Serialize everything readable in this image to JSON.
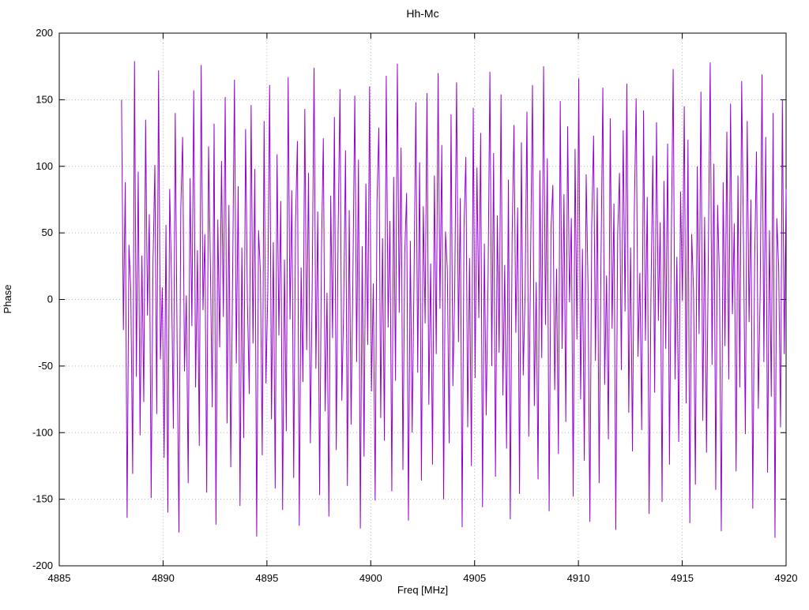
{
  "chart_data": {
    "type": "line",
    "title": "Hh-Mc",
    "xlabel": "Freq [MHz]",
    "ylabel": "Phase",
    "xlim": [
      4885,
      4920
    ],
    "ylim": [
      -200,
      200
    ],
    "x_ticks": [
      4885,
      4890,
      4895,
      4900,
      4905,
      4910,
      4915,
      4920
    ],
    "y_ticks": [
      -200,
      -150,
      -100,
      -50,
      0,
      50,
      100,
      150,
      200
    ],
    "grid": true,
    "legend": "none",
    "series_name": "Hh-Mc",
    "series_color": "#9400d3",
    "grid_color": "#b5b5b5",
    "x_start": 4888.0,
    "x_end": 4920.0,
    "values": [
      150,
      -23,
      88,
      -164,
      41,
      7,
      -131,
      179,
      -58,
      96,
      -102,
      33,
      -77,
      135,
      -12,
      64,
      -149,
      28,
      101,
      -86,
      172,
      -45,
      9,
      -119,
      56,
      -160,
      83,
      14,
      -97,
      140,
      -31,
      -175,
      68,
      122,
      -54,
      3,
      -138,
      91,
      -20,
      157,
      -66,
      37,
      -110,
      176,
      -8,
      49,
      -145,
      115,
      25,
      -81,
      132,
      -169,
      60,
      -36,
      104,
      -13,
      152,
      -93,
      71,
      -126,
      17,
      165,
      -48,
      85,
      -155,
      39,
      -104,
      128,
      -2,
      -71,
      146,
      -33,
      98,
      -178,
      52,
      21,
      -117,
      134,
      -63,
      6,
      161,
      -90,
      43,
      -142,
      109,
      -27,
      74,
      -158,
      30,
      -99,
      167,
      -15,
      82,
      -134,
      58,
      119,
      -170,
      24,
      -62,
      143,
      -38,
      95,
      -108,
      11,
      174,
      -52,
      66,
      -147,
      36,
      121,
      -84,
      5,
      -163,
      78,
      -29,
      137,
      -113,
      50,
      158,
      -76,
      -5,
      112,
      -140,
      67,
      -94,
      19,
      153,
      -47,
      105,
      -172,
      40,
      -118,
      87,
      -34,
      160,
      -69,
      12,
      -151,
      73,
      129,
      -89,
      46,
      -106,
      168,
      -21,
      59,
      -144,
      92,
      -61,
      177,
      -10,
      114,
      -128,
      35,
      80,
      -166,
      44,
      -100,
      16,
      148,
      -55,
      103,
      -136,
      70,
      -18,
      155,
      -79,
      27,
      -124,
      93,
      -41,
      170,
      -7,
      116,
      -150,
      51,
      22,
      -108,
      139,
      -65,
      8,
      163,
      -32,
      76,
      -171,
      54,
      107,
      -96,
      31,
      -125,
      144,
      -59,
      99,
      -14,
      125,
      -156,
      42,
      -87,
      15,
      171,
      -50,
      110,
      -133,
      63,
      -40,
      154,
      -72,
      26,
      -112,
      90,
      -165,
      47,
      131,
      -25,
      69,
      -146,
      118,
      -57,
      4,
      141,
      -103,
      34,
      161,
      -80,
      13,
      -135,
      97,
      -44,
      175,
      -19,
      106,
      -159,
      53,
      86,
      -68,
      23,
      -116,
      149,
      -37,
      79,
      -92,
      130,
      -2,
      61,
      -148,
      113,
      -30,
      166,
      -75,
      38,
      -121,
      94,
      10,
      -167,
      55,
      123,
      -46,
      84,
      -138,
      29,
      159,
      -64,
      18,
      -105,
      136,
      -22,
      72,
      -173,
      48,
      95,
      -53,
      127,
      -9,
      162,
      -85,
      39,
      -114,
      65,
      151,
      -43,
      20,
      -98,
      142,
      -31,
      77,
      -161,
      3,
      108,
      -70,
      133,
      -16,
      58,
      -152,
      89,
      -37,
      117,
      -124,
      45,
      173,
      -60,
      32,
      -107,
      81,
      -1,
      145,
      -78,
      120,
      -168,
      49,
      7,
      -139,
      100,
      -26,
      156,
      -91,
      62,
      -115,
      35,
      178,
      -49,
      102,
      -143,
      71,
      16,
      -174,
      88,
      -35,
      126,
      -60,
      147,
      -11,
      57,
      -129,
      93,
      -66,
      164,
      42,
      -101,
      134,
      -17,
      75,
      -157,
      28,
      111,
      -82,
      6,
      169,
      -47,
      122,
      -130,
      52,
      -73,
      140,
      -179,
      61,
      24,
      -96,
      150,
      -41,
      83
    ]
  }
}
